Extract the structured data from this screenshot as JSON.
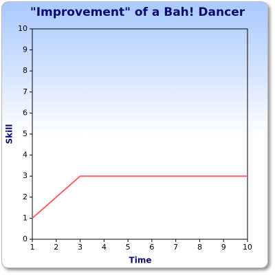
{
  "chart_data": {
    "type": "line",
    "title": "\"Improvement\" of a Bah! Dancer",
    "x_label": "Time",
    "y_label": "Skill",
    "x": [
      1,
      2,
      3,
      4,
      5,
      6,
      7,
      8,
      9,
      10
    ],
    "series": [
      {
        "name": "Skill",
        "color": "#ff6060",
        "values": [
          1,
          2,
          3,
          3,
          3,
          3,
          3,
          3,
          3,
          3
        ]
      }
    ],
    "xlim": [
      1,
      10
    ],
    "xticks": [
      1,
      2,
      3,
      4,
      5,
      6,
      7,
      8,
      9,
      10
    ],
    "ylim": [
      0,
      10
    ],
    "yticks": [
      0,
      1,
      2,
      3,
      4,
      5,
      6,
      7,
      8,
      9,
      10
    ]
  }
}
